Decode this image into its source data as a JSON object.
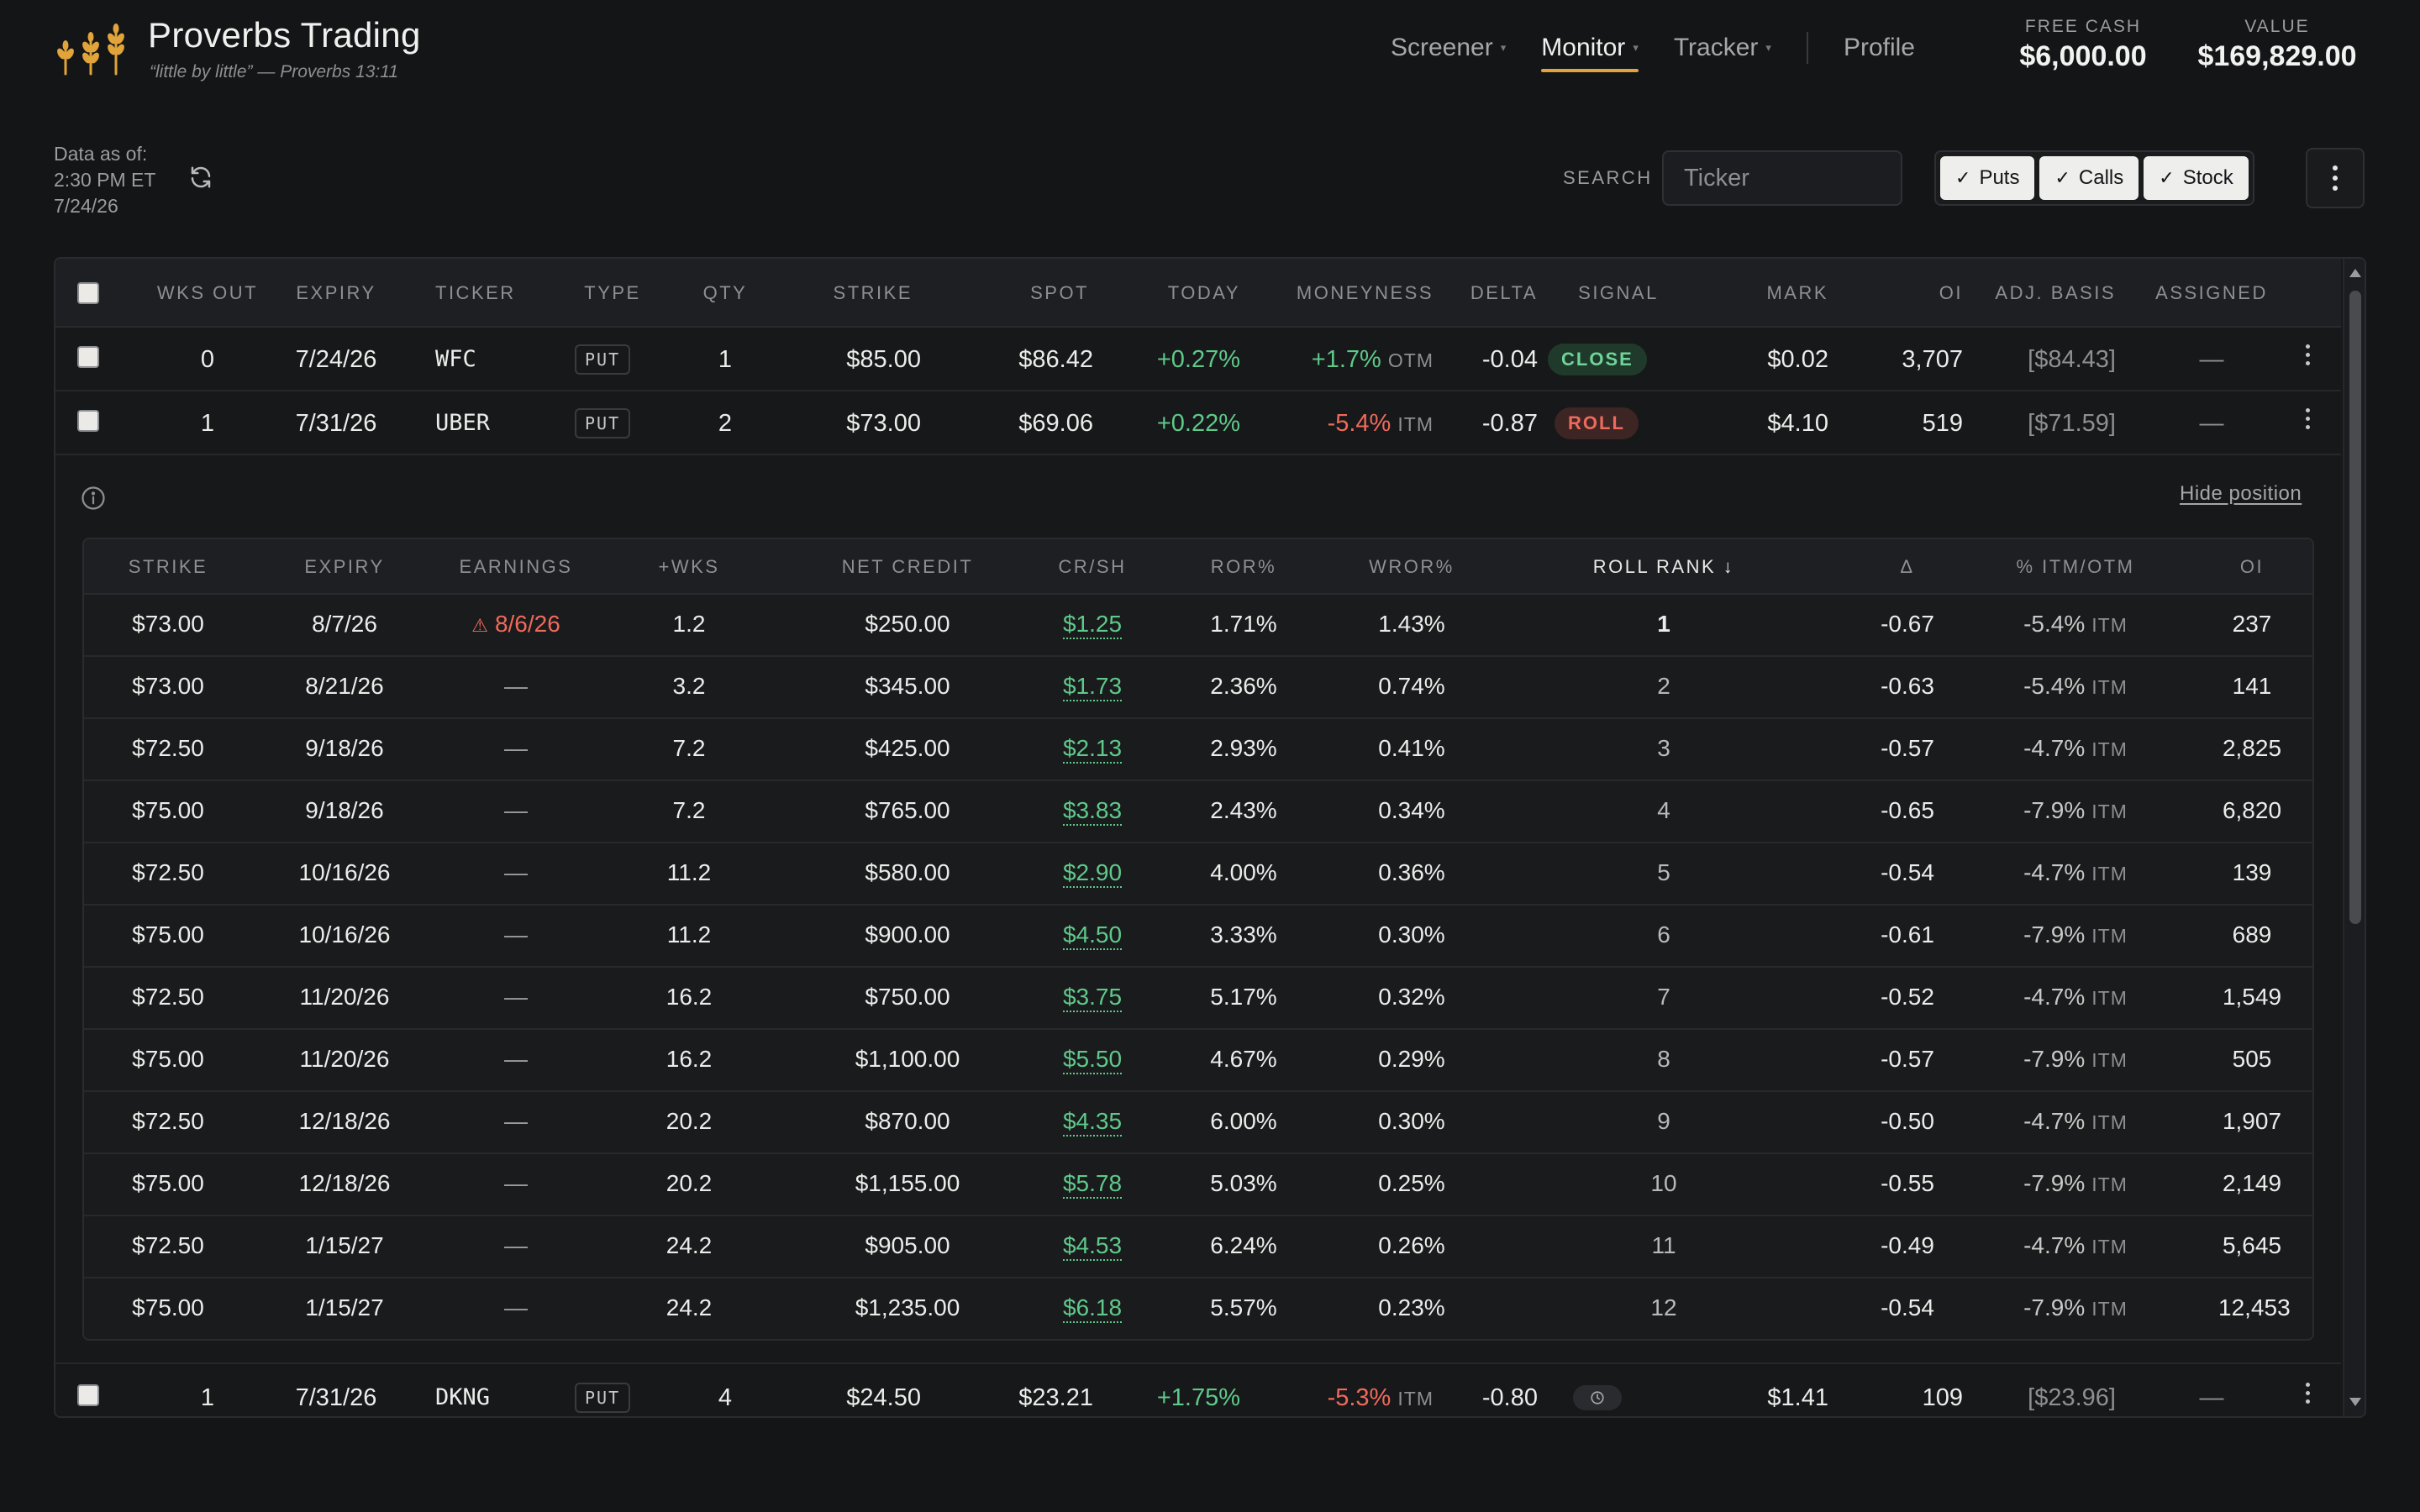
{
  "brand": {
    "title": "Proverbs Trading",
    "subtitle": "“little by little” — Proverbs 13:11",
    "accent": "#e0a43a"
  },
  "nav": {
    "items": [
      {
        "label": "Screener",
        "dot": "▾"
      },
      {
        "label": "Monitor",
        "dot": "▾",
        "active": true
      },
      {
        "label": "Tracker",
        "dot": "▾"
      }
    ],
    "profile": "Profile"
  },
  "stats": {
    "free_cash_label": "FREE CASH",
    "free_cash": "$6,000.00",
    "value_label": "VALUE",
    "value": "$169,829.00"
  },
  "asof": {
    "label": "Data as of:",
    "time": "2:30 PM ET",
    "date": "7/24/26"
  },
  "search": {
    "label": "SEARCH",
    "placeholder": "Ticker"
  },
  "filters": [
    {
      "label": "Puts",
      "checked": true
    },
    {
      "label": "Calls",
      "checked": true
    },
    {
      "label": "Stock",
      "checked": true
    }
  ],
  "table": {
    "headers": [
      "WKS OUT",
      "EXPIRY",
      "TICKER",
      "TYPE",
      "QTY",
      "STRIKE",
      "SPOT",
      "TODAY",
      "MONEYNESS",
      "DELTA",
      "SIGNAL",
      "MARK",
      "OI",
      "ADJ. BASIS",
      "ASSIGNED"
    ],
    "rows": [
      {
        "wks_out": "0",
        "expiry": "7/24/26",
        "ticker": "WFC",
        "type": "PUT",
        "qty": "1",
        "strike": "$85.00",
        "spot": "$86.42",
        "today": "+0.27%",
        "moneyness": "+1.7%",
        "moneyness_tag": "OTM",
        "delta": "-0.04",
        "signal": "CLOSE",
        "mark": "$0.02",
        "oi": "3,707",
        "adj_basis": "[$84.43]",
        "assigned": "—"
      },
      {
        "wks_out": "1",
        "expiry": "7/31/26",
        "ticker": "UBER",
        "type": "PUT",
        "qty": "2",
        "strike": "$73.00",
        "spot": "$69.06",
        "today": "+0.22%",
        "moneyness": "-5.4%",
        "moneyness_tag": "ITM",
        "delta": "-0.87",
        "signal": "ROLL",
        "mark": "$4.10",
        "oi": "519",
        "adj_basis": "[$71.59]",
        "assigned": "—"
      },
      {
        "wks_out": "1",
        "expiry": "7/31/26",
        "ticker": "DKNG",
        "type": "PUT",
        "qty": "4",
        "strike": "$24.50",
        "spot": "$23.21",
        "today": "+1.75%",
        "moneyness": "-5.3%",
        "moneyness_tag": "ITM",
        "delta": "-0.80",
        "signal": "clock-icon",
        "mark": "$1.41",
        "oi": "109",
        "adj_basis": "[$23.96]",
        "assigned": "—"
      }
    ]
  },
  "expanded": {
    "hide_label": "Hide position",
    "headers": [
      "STRIKE",
      "EXPIRY",
      "EARNINGS",
      "+WKS",
      "NET CREDIT",
      "CR/SH",
      "ROR%",
      "WROR%",
      "ROLL RANK ↓",
      "Δ",
      "% ITM/OTM",
      "OI"
    ],
    "rows": [
      {
        "strike": "$73.00",
        "expiry": "8/7/26",
        "earnings": "8/6/26",
        "wks": "1.2",
        "net_credit": "$250.00",
        "cr_sh": "$1.25",
        "ror": "1.71%",
        "wror": "1.43%",
        "rank": "1",
        "delta": "-0.67",
        "pct": "-5.4%",
        "pct_tag": "ITM",
        "oi": "237"
      },
      {
        "strike": "$73.00",
        "expiry": "8/21/26",
        "earnings": "—",
        "wks": "3.2",
        "net_credit": "$345.00",
        "cr_sh": "$1.73",
        "ror": "2.36%",
        "wror": "0.74%",
        "rank": "2",
        "delta": "-0.63",
        "pct": "-5.4%",
        "pct_tag": "ITM",
        "oi": "141"
      },
      {
        "strike": "$72.50",
        "expiry": "9/18/26",
        "earnings": "—",
        "wks": "7.2",
        "net_credit": "$425.00",
        "cr_sh": "$2.13",
        "ror": "2.93%",
        "wror": "0.41%",
        "rank": "3",
        "delta": "-0.57",
        "pct": "-4.7%",
        "pct_tag": "ITM",
        "oi": "2,825"
      },
      {
        "strike": "$75.00",
        "expiry": "9/18/26",
        "earnings": "—",
        "wks": "7.2",
        "net_credit": "$765.00",
        "cr_sh": "$3.83",
        "ror": "2.43%",
        "wror": "0.34%",
        "rank": "4",
        "delta": "-0.65",
        "pct": "-7.9%",
        "pct_tag": "ITM",
        "oi": "6,820"
      },
      {
        "strike": "$72.50",
        "expiry": "10/16/26",
        "earnings": "—",
        "wks": "11.2",
        "net_credit": "$580.00",
        "cr_sh": "$2.90",
        "ror": "4.00%",
        "wror": "0.36%",
        "rank": "5",
        "delta": "-0.54",
        "pct": "-4.7%",
        "pct_tag": "ITM",
        "oi": "139"
      },
      {
        "strike": "$75.00",
        "expiry": "10/16/26",
        "earnings": "—",
        "wks": "11.2",
        "net_credit": "$900.00",
        "cr_sh": "$4.50",
        "ror": "3.33%",
        "wror": "0.30%",
        "rank": "6",
        "delta": "-0.61",
        "pct": "-7.9%",
        "pct_tag": "ITM",
        "oi": "689"
      },
      {
        "strike": "$72.50",
        "expiry": "11/20/26",
        "earnings": "—",
        "wks": "16.2",
        "net_credit": "$750.00",
        "cr_sh": "$3.75",
        "ror": "5.17%",
        "wror": "0.32%",
        "rank": "7",
        "delta": "-0.52",
        "pct": "-4.7%",
        "pct_tag": "ITM",
        "oi": "1,549"
      },
      {
        "strike": "$75.00",
        "expiry": "11/20/26",
        "earnings": "—",
        "wks": "16.2",
        "net_credit": "$1,100.00",
        "cr_sh": "$5.50",
        "ror": "4.67%",
        "wror": "0.29%",
        "rank": "8",
        "delta": "-0.57",
        "pct": "-7.9%",
        "pct_tag": "ITM",
        "oi": "505"
      },
      {
        "strike": "$72.50",
        "expiry": "12/18/26",
        "earnings": "—",
        "wks": "20.2",
        "net_credit": "$870.00",
        "cr_sh": "$4.35",
        "ror": "6.00%",
        "wror": "0.30%",
        "rank": "9",
        "delta": "-0.50",
        "pct": "-4.7%",
        "pct_tag": "ITM",
        "oi": "1,907"
      },
      {
        "strike": "$75.00",
        "expiry": "12/18/26",
        "earnings": "—",
        "wks": "20.2",
        "net_credit": "$1,155.00",
        "cr_sh": "$5.78",
        "ror": "5.03%",
        "wror": "0.25%",
        "rank": "10",
        "delta": "-0.55",
        "pct": "-7.9%",
        "pct_tag": "ITM",
        "oi": "2,149"
      },
      {
        "strike": "$72.50",
        "expiry": "1/15/27",
        "earnings": "—",
        "wks": "24.2",
        "net_credit": "$905.00",
        "cr_sh": "$4.53",
        "ror": "6.24%",
        "wror": "0.26%",
        "rank": "11",
        "delta": "-0.49",
        "pct": "-4.7%",
        "pct_tag": "ITM",
        "oi": "5,645"
      },
      {
        "strike": "$75.00",
        "expiry": "1/15/27",
        "earnings": "—",
        "wks": "24.2",
        "net_credit": "$1,235.00",
        "cr_sh": "$6.18",
        "ror": "5.57%",
        "wror": "0.23%",
        "rank": "12",
        "delta": "-0.54",
        "pct": "-7.9%",
        "pct_tag": "ITM",
        "oi": "12,453"
      }
    ]
  },
  "colors": {
    "positive": "#5fc98a",
    "negative": "#ef6a5b",
    "background": "#141517"
  }
}
